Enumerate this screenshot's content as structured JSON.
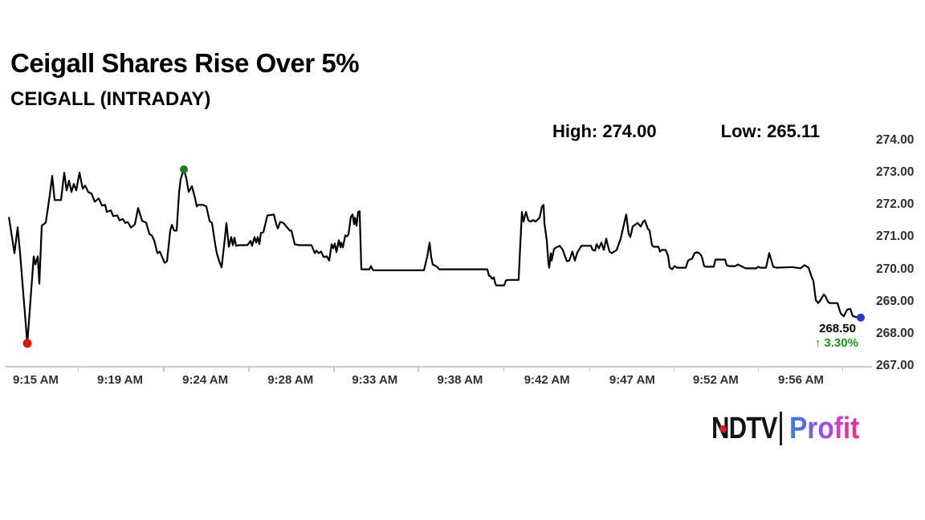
{
  "header": {
    "title": "Ceigall Shares Rise Over 5%",
    "subtitle": "CEIGALL (INTRADAY)"
  },
  "stats": {
    "high_label": "High:",
    "high_value": "274.00",
    "low_label": "Low:",
    "low_value": "265.11"
  },
  "annotation": {
    "price": "268.50",
    "arrow": "↑",
    "change": "3.30%"
  },
  "logo": {
    "ndtv": "NDTV",
    "profit": "Profit"
  },
  "colors": {
    "line": "#000000",
    "low_marker": "#e8140c",
    "high_marker": "#1a7d1a",
    "last_marker": "#2438c8",
    "change_text": "#0f9f0f",
    "axis_text": "#303030",
    "grid": "#c9c9c9",
    "ndtv_dot": "#e01b24",
    "profit_gradient": [
      "#2e7fe8",
      "#7e58f0",
      "#c93fd6",
      "#f42a7a"
    ]
  },
  "chart_data": {
    "type": "line",
    "title": "CEIGALL (INTRADAY)",
    "xlabel": "",
    "ylabel": "",
    "high": 274.0,
    "low": 265.11,
    "last": 268.5,
    "change_pct": 3.3,
    "ylim": [
      267,
      274
    ],
    "grid": "baseline-only",
    "legend": "none",
    "y_ticks": [
      "274.00",
      "273.00",
      "272.00",
      "271.00",
      "270.00",
      "269.00",
      "268.00",
      "267.00"
    ],
    "x_ticks": [
      "9:15 AM",
      "9:19 AM",
      "9:24 AM",
      "9:28 AM",
      "9:33 AM",
      "9:38 AM",
      "9:42 AM",
      "9:47 AM",
      "9:52 AM",
      "9:56 AM"
    ],
    "x_tick_pct": [
      3.4,
      13.2,
      23.1,
      33.0,
      42.8,
      52.7,
      62.8,
      72.7,
      82.4,
      92.3
    ],
    "x_boundary_pct": [
      8.3,
      18.2,
      28.1,
      38.0,
      47.8,
      57.7,
      67.7,
      77.5,
      87.3,
      97.1
    ],
    "markers": [
      {
        "name": "low-point-marker",
        "x": 2.43,
        "price": 267.7,
        "color_key": "low_marker",
        "r": 5.5
      },
      {
        "name": "high-point-marker",
        "x": 20.62,
        "price": 273.1,
        "color_key": "high_marker",
        "r": 5
      },
      {
        "name": "last-point-marker",
        "x": 99.25,
        "price": 268.5,
        "color_key": "last_marker",
        "r": 5
      }
    ],
    "points": [
      [
        0.3,
        271.6
      ],
      [
        0.93,
        270.5
      ],
      [
        1.31,
        271.3
      ],
      [
        1.59,
        270.5
      ],
      [
        2.43,
        267.7
      ],
      [
        3.17,
        270.4
      ],
      [
        3.36,
        270.15
      ],
      [
        3.64,
        270.4
      ],
      [
        3.82,
        269.55
      ],
      [
        4.1,
        271.35
      ],
      [
        4.57,
        271.45
      ],
      [
        5.04,
        272.3
      ],
      [
        5.32,
        272.9
      ],
      [
        5.6,
        272.15
      ],
      [
        6.34,
        272.15
      ],
      [
        6.72,
        273.0
      ],
      [
        7.0,
        272.45
      ],
      [
        7.28,
        272.75
      ],
      [
        7.56,
        272.4
      ],
      [
        7.84,
        272.65
      ],
      [
        8.12,
        272.45
      ],
      [
        8.49,
        273.0
      ],
      [
        8.86,
        272.5
      ],
      [
        9.14,
        272.6
      ],
      [
        9.51,
        272.4
      ],
      [
        9.89,
        272.35
      ],
      [
        10.26,
        272.1
      ],
      [
        10.73,
        272.2
      ],
      [
        11.1,
        271.98
      ],
      [
        11.47,
        272.0
      ],
      [
        11.66,
        271.78
      ],
      [
        12.13,
        271.83
      ],
      [
        12.41,
        271.65
      ],
      [
        12.87,
        271.67
      ],
      [
        13.15,
        271.52
      ],
      [
        13.53,
        271.56
      ],
      [
        13.81,
        271.44
      ],
      [
        14.09,
        271.47
      ],
      [
        14.46,
        271.3
      ],
      [
        14.74,
        271.35
      ],
      [
        14.93,
        271.4
      ],
      [
        15.3,
        271.9
      ],
      [
        15.77,
        271.5
      ],
      [
        16.23,
        271.45
      ],
      [
        16.6,
        271.1
      ],
      [
        16.88,
        271.05
      ],
      [
        17.16,
        270.9
      ],
      [
        17.54,
        270.5
      ],
      [
        17.82,
        270.55
      ],
      [
        18.38,
        270.2
      ],
      [
        18.66,
        270.25
      ],
      [
        19.03,
        271.2
      ],
      [
        19.22,
        271.38
      ],
      [
        19.5,
        271.2
      ],
      [
        19.78,
        271.2
      ],
      [
        20.06,
        272.38
      ],
      [
        20.24,
        272.8
      ],
      [
        20.62,
        273.1
      ],
      [
        20.9,
        272.83
      ],
      [
        21.18,
        272.4
      ],
      [
        21.55,
        272.58
      ],
      [
        21.92,
        272.2
      ],
      [
        22.11,
        271.95
      ],
      [
        22.29,
        272.0
      ],
      [
        22.85,
        272.0
      ],
      [
        23.23,
        271.95
      ],
      [
        23.6,
        271.5
      ],
      [
        23.88,
        271.44
      ],
      [
        24.25,
        270.78
      ],
      [
        24.44,
        270.5
      ],
      [
        24.72,
        270.25
      ],
      [
        25.0,
        270.06
      ],
      [
        25.37,
        270.95
      ],
      [
        25.56,
        271.44
      ],
      [
        25.84,
        270.7
      ],
      [
        26.12,
        271.0
      ],
      [
        26.31,
        270.75
      ],
      [
        26.49,
        270.98
      ],
      [
        26.68,
        270.73
      ],
      [
        27.05,
        270.75
      ],
      [
        27.99,
        270.75
      ],
      [
        28.36,
        270.88
      ],
      [
        28.54,
        270.73
      ],
      [
        28.82,
        271.0
      ],
      [
        29.01,
        270.83
      ],
      [
        29.2,
        271.0
      ],
      [
        29.38,
        270.78
      ],
      [
        29.57,
        271.13
      ],
      [
        29.85,
        271.15
      ],
      [
        30.32,
        271.67
      ],
      [
        31.06,
        271.7
      ],
      [
        31.34,
        271.4
      ],
      [
        31.53,
        271.27
      ],
      [
        31.81,
        271.47
      ],
      [
        32.18,
        271.44
      ],
      [
        32.93,
        271.2
      ],
      [
        33.12,
        271.2
      ],
      [
        33.49,
        270.78
      ],
      [
        33.96,
        270.75
      ],
      [
        35.45,
        270.75
      ],
      [
        35.82,
        270.5
      ],
      [
        36.01,
        270.58
      ],
      [
        36.29,
        270.5
      ],
      [
        36.57,
        270.55
      ],
      [
        36.85,
        270.38
      ],
      [
        37.22,
        270.4
      ],
      [
        37.5,
        270.27
      ],
      [
        37.78,
        270.78
      ],
      [
        37.97,
        270.65
      ],
      [
        38.15,
        270.8
      ],
      [
        38.34,
        270.53
      ],
      [
        38.62,
        270.9
      ],
      [
        38.81,
        270.68
      ],
      [
        38.9,
        270.83
      ],
      [
        39.09,
        270.68
      ],
      [
        39.37,
        271.05
      ],
      [
        39.55,
        271.02
      ],
      [
        39.74,
        271.08
      ],
      [
        40.02,
        271.63
      ],
      [
        40.21,
        271.7
      ],
      [
        40.39,
        271.4
      ],
      [
        40.49,
        271.6
      ],
      [
        40.67,
        271.35
      ],
      [
        40.86,
        271.78
      ],
      [
        41.04,
        271.8
      ],
      [
        41.23,
        270.0
      ],
      [
        42.16,
        270.0
      ],
      [
        42.35,
        270.1
      ],
      [
        42.54,
        270.0
      ],
      [
        42.63,
        269.97
      ],
      [
        48.51,
        269.97
      ],
      [
        48.88,
        270.38
      ],
      [
        49.16,
        270.83
      ],
      [
        49.35,
        270.38
      ],
      [
        49.53,
        270.15
      ],
      [
        49.91,
        270.1
      ],
      [
        50.09,
        270.06
      ],
      [
        50.28,
        270.0
      ],
      [
        53.26,
        270.0
      ],
      [
        55.88,
        270.0
      ],
      [
        56.06,
        269.8
      ],
      [
        56.25,
        269.78
      ],
      [
        56.44,
        269.7
      ],
      [
        56.62,
        269.75
      ],
      [
        56.81,
        269.55
      ],
      [
        56.9,
        269.5
      ],
      [
        57.84,
        269.5
      ],
      [
        58.02,
        269.65
      ],
      [
        58.3,
        269.67
      ],
      [
        59.51,
        269.67
      ],
      [
        59.7,
        270.78
      ],
      [
        59.89,
        271.78
      ],
      [
        60.07,
        271.48
      ],
      [
        60.35,
        271.78
      ],
      [
        60.63,
        271.52
      ],
      [
        60.91,
        271.48
      ],
      [
        61.19,
        271.53
      ],
      [
        61.47,
        271.48
      ],
      [
        61.94,
        271.6
      ],
      [
        62.22,
        271.95
      ],
      [
        62.41,
        272.0
      ],
      [
        62.5,
        271.44
      ],
      [
        62.78,
        270.88
      ],
      [
        62.97,
        270.2
      ],
      [
        63.06,
        270.05
      ],
      [
        63.25,
        270.5
      ],
      [
        63.34,
        270.27
      ],
      [
        63.62,
        270.63
      ],
      [
        63.9,
        270.68
      ],
      [
        64.27,
        270.73
      ],
      [
        64.65,
        270.6
      ],
      [
        64.83,
        270.45
      ],
      [
        65.11,
        270.25
      ],
      [
        65.39,
        270.27
      ],
      [
        65.76,
        270.55
      ],
      [
        66.04,
        270.27
      ],
      [
        66.32,
        270.52
      ],
      [
        66.79,
        270.73
      ],
      [
        67.91,
        270.73
      ],
      [
        68.1,
        270.6
      ],
      [
        68.38,
        270.58
      ],
      [
        68.56,
        270.78
      ],
      [
        68.84,
        270.65
      ],
      [
        69.12,
        270.83
      ],
      [
        69.4,
        270.6
      ],
      [
        69.68,
        270.95
      ],
      [
        70.06,
        270.55
      ],
      [
        70.34,
        270.5
      ],
      [
        70.62,
        270.55
      ],
      [
        70.9,
        270.6
      ],
      [
        71.36,
        270.95
      ],
      [
        71.74,
        271.4
      ],
      [
        72.01,
        271.7
      ],
      [
        72.29,
        271.1
      ],
      [
        72.48,
        271.0
      ],
      [
        72.76,
        271.33
      ],
      [
        73.13,
        271.4
      ],
      [
        73.32,
        271.44
      ],
      [
        73.69,
        271.33
      ],
      [
        73.97,
        271.48
      ],
      [
        74.16,
        271.52
      ],
      [
        74.53,
        271.25
      ],
      [
        74.72,
        271.2
      ],
      [
        75.0,
        270.75
      ],
      [
        75.19,
        270.7
      ],
      [
        75.75,
        270.7
      ],
      [
        75.93,
        270.55
      ],
      [
        76.12,
        270.6
      ],
      [
        76.59,
        270.6
      ],
      [
        76.87,
        270.42
      ],
      [
        77.05,
        270.06
      ],
      [
        77.33,
        270.0
      ],
      [
        77.61,
        270.1
      ],
      [
        77.89,
        270.05
      ],
      [
        78.92,
        270.05
      ],
      [
        79.2,
        270.27
      ],
      [
        79.38,
        270.3
      ],
      [
        79.66,
        270.33
      ],
      [
        79.94,
        270.5
      ],
      [
        80.22,
        270.53
      ],
      [
        80.5,
        270.5
      ],
      [
        80.78,
        270.4
      ],
      [
        81.06,
        270.1
      ],
      [
        81.25,
        270.08
      ],
      [
        82.18,
        270.08
      ],
      [
        82.37,
        270.3
      ],
      [
        83.49,
        270.3
      ],
      [
        83.68,
        270.13
      ],
      [
        83.96,
        270.1
      ],
      [
        84.7,
        270.1
      ],
      [
        84.98,
        270.15
      ],
      [
        85.35,
        270.1
      ],
      [
        85.73,
        270.05
      ],
      [
        85.91,
        270.03
      ],
      [
        87.13,
        270.03
      ],
      [
        87.31,
        270.08
      ],
      [
        87.59,
        270.05
      ],
      [
        88.25,
        270.05
      ],
      [
        88.62,
        270.5
      ],
      [
        89.09,
        270.08
      ],
      [
        89.46,
        270.05
      ],
      [
        91.32,
        270.07
      ],
      [
        92.26,
        270.03
      ],
      [
        92.72,
        270.13
      ],
      [
        93.19,
        270.05
      ],
      [
        93.56,
        269.75
      ],
      [
        93.75,
        269.64
      ],
      [
        94.03,
        269.04
      ],
      [
        94.31,
        268.95
      ],
      [
        94.59,
        269.05
      ],
      [
        94.96,
        269.22
      ],
      [
        95.15,
        269.16
      ],
      [
        95.43,
        269.0
      ],
      [
        95.62,
        268.95
      ],
      [
        96.55,
        268.95
      ],
      [
        96.92,
        268.63
      ],
      [
        97.29,
        268.54
      ],
      [
        97.67,
        268.75
      ],
      [
        98.04,
        268.77
      ],
      [
        98.32,
        268.55
      ],
      [
        98.69,
        268.52
      ],
      [
        99.25,
        268.5
      ]
    ]
  }
}
